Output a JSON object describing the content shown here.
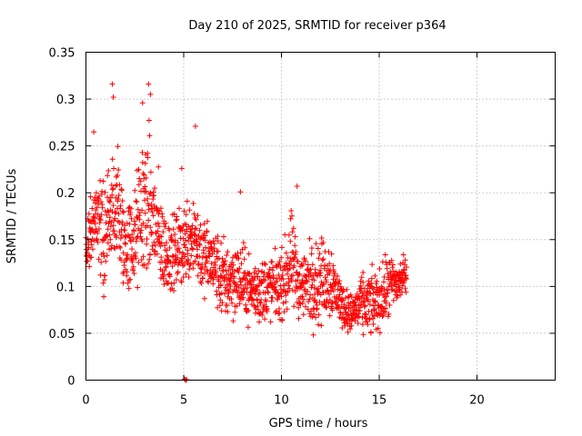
{
  "chart_data": {
    "type": "scatter",
    "title": "Day 210 of 2025, SRMTID for receiver p364",
    "xlabel": "GPS time / hours",
    "ylabel": "SRMTID / TECUs",
    "xlim": [
      0,
      24
    ],
    "ylim": [
      0,
      0.35
    ],
    "xticks": [
      0,
      5,
      10,
      15,
      20
    ],
    "xtick_labels": [
      "0",
      "5",
      "10",
      "15",
      "20"
    ],
    "yticks": [
      0,
      0.05,
      0.1,
      0.15,
      0.2,
      0.25,
      0.3,
      0.35
    ],
    "ytick_labels": [
      "0",
      "0.05",
      "0.1",
      "0.15",
      "0.2",
      "0.25",
      "0.3",
      "0.35"
    ],
    "grid": true,
    "marker": "+",
    "color": "#ff0000",
    "series": [
      {
        "name": "SRMTID",
        "envelope": [
          {
            "x": 0.0,
            "lo": 0.1,
            "hi": 0.19
          },
          {
            "x": 0.5,
            "lo": 0.09,
            "hi": 0.26
          },
          {
            "x": 1.0,
            "lo": 0.08,
            "hi": 0.22
          },
          {
            "x": 1.5,
            "lo": 0.08,
            "hi": 0.31
          },
          {
            "x": 2.0,
            "lo": 0.07,
            "hi": 0.21
          },
          {
            "x": 2.5,
            "lo": 0.07,
            "hi": 0.23
          },
          {
            "x": 3.0,
            "lo": 0.07,
            "hi": 0.31
          },
          {
            "x": 3.5,
            "lo": 0.07,
            "hi": 0.27
          },
          {
            "x": 4.0,
            "lo": 0.07,
            "hi": 0.2
          },
          {
            "x": 4.5,
            "lo": 0.08,
            "hi": 0.19
          },
          {
            "x": 5.0,
            "lo": 0.08,
            "hi": 0.21
          },
          {
            "x": 5.5,
            "lo": 0.09,
            "hi": 0.23
          },
          {
            "x": 6.0,
            "lo": 0.07,
            "hi": 0.19
          },
          {
            "x": 6.5,
            "lo": 0.07,
            "hi": 0.18
          },
          {
            "x": 7.0,
            "lo": 0.04,
            "hi": 0.17
          },
          {
            "x": 7.5,
            "lo": 0.05,
            "hi": 0.17
          },
          {
            "x": 8.0,
            "lo": 0.05,
            "hi": 0.16
          },
          {
            "x": 8.5,
            "lo": 0.05,
            "hi": 0.14
          },
          {
            "x": 9.0,
            "lo": 0.04,
            "hi": 0.15
          },
          {
            "x": 9.5,
            "lo": 0.05,
            "hi": 0.15
          },
          {
            "x": 10.0,
            "lo": 0.05,
            "hi": 0.15
          },
          {
            "x": 10.5,
            "lo": 0.05,
            "hi": 0.2
          },
          {
            "x": 11.0,
            "lo": 0.05,
            "hi": 0.15
          },
          {
            "x": 11.5,
            "lo": 0.04,
            "hi": 0.17
          },
          {
            "x": 12.0,
            "lo": 0.04,
            "hi": 0.17
          },
          {
            "x": 12.5,
            "lo": 0.05,
            "hi": 0.17
          },
          {
            "x": 13.0,
            "lo": 0.05,
            "hi": 0.12
          },
          {
            "x": 13.5,
            "lo": 0.04,
            "hi": 0.1
          },
          {
            "x": 14.0,
            "lo": 0.04,
            "hi": 0.12
          },
          {
            "x": 14.5,
            "lo": 0.03,
            "hi": 0.13
          },
          {
            "x": 15.0,
            "lo": 0.04,
            "hi": 0.13
          },
          {
            "x": 15.5,
            "lo": 0.05,
            "hi": 0.15
          },
          {
            "x": 16.0,
            "lo": 0.07,
            "hi": 0.14
          },
          {
            "x": 16.4,
            "lo": 0.09,
            "hi": 0.14
          }
        ],
        "spikes": [
          {
            "x": 0.4,
            "y": 0.265
          },
          {
            "x": 1.35,
            "y": 0.316
          },
          {
            "x": 1.4,
            "y": 0.302
          },
          {
            "x": 2.9,
            "y": 0.296
          },
          {
            "x": 3.2,
            "y": 0.316
          },
          {
            "x": 3.3,
            "y": 0.305
          },
          {
            "x": 4.9,
            "y": 0.226
          },
          {
            "x": 5.6,
            "y": 0.271
          },
          {
            "x": 7.9,
            "y": 0.201
          },
          {
            "x": 10.8,
            "y": 0.207
          }
        ],
        "near_zero": [
          {
            "x": 5.05,
            "y": 0.001
          },
          {
            "x": 5.1,
            "y": 0.0
          },
          {
            "x": 5.15,
            "y": 0.0005
          }
        ]
      }
    ]
  }
}
